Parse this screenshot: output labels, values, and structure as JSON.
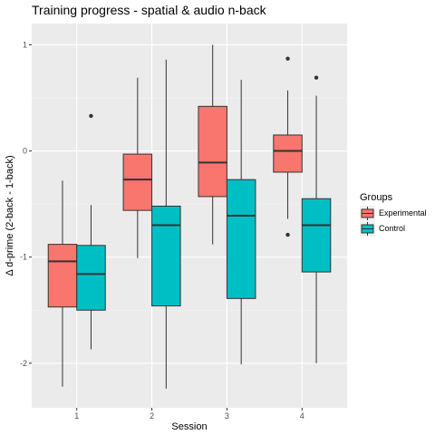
{
  "chart_data": {
    "type": "boxplot",
    "title": "Training progress - spatial & audio n-back",
    "xlabel": "Session",
    "ylabel": "Δ d-prime (2-back - 1-back)",
    "categories": [
      "1",
      "2",
      "3",
      "4"
    ],
    "ylim": [
      -2.42,
      1.2
    ],
    "yticks": [
      -2,
      -1,
      0,
      1
    ],
    "ytick_labels": [
      "-2",
      "-1",
      "0",
      "1"
    ],
    "grid": true,
    "legend": {
      "title": "Groups",
      "position": "right"
    },
    "series": [
      {
        "name": "Experimental",
        "color": "#F8766D",
        "boxes": [
          {
            "whisker_low": -2.22,
            "q1": -1.47,
            "median": -1.04,
            "q3": -0.88,
            "whisker_high": -0.28,
            "outliers": []
          },
          {
            "whisker_low": -1.01,
            "q1": -0.56,
            "median": -0.27,
            "q3": -0.03,
            "whisker_high": 0.69,
            "outliers": []
          },
          {
            "whisker_low": -0.88,
            "q1": -0.43,
            "median": -0.11,
            "q3": 0.42,
            "whisker_high": 1.0,
            "outliers": []
          },
          {
            "whisker_low": -0.64,
            "q1": -0.2,
            "median": 0.0,
            "q3": 0.15,
            "whisker_high": 0.57,
            "outliers": [
              0.87,
              -0.79
            ]
          }
        ]
      },
      {
        "name": "Control",
        "color": "#00BFC4",
        "boxes": [
          {
            "whisker_low": -1.87,
            "q1": -1.5,
            "median": -1.16,
            "q3": -0.89,
            "whisker_high": -0.51,
            "outliers": [
              0.33
            ]
          },
          {
            "whisker_low": -2.24,
            "q1": -1.46,
            "median": -0.7,
            "q3": -0.52,
            "whisker_high": 0.86,
            "outliers": []
          },
          {
            "whisker_low": -2.01,
            "q1": -1.39,
            "median": -0.61,
            "q3": -0.27,
            "whisker_high": 0.67,
            "outliers": []
          },
          {
            "whisker_low": -2.0,
            "q1": -1.14,
            "median": -0.7,
            "q3": -0.45,
            "whisker_high": 0.52,
            "outliers": [
              0.69
            ]
          }
        ]
      }
    ]
  }
}
